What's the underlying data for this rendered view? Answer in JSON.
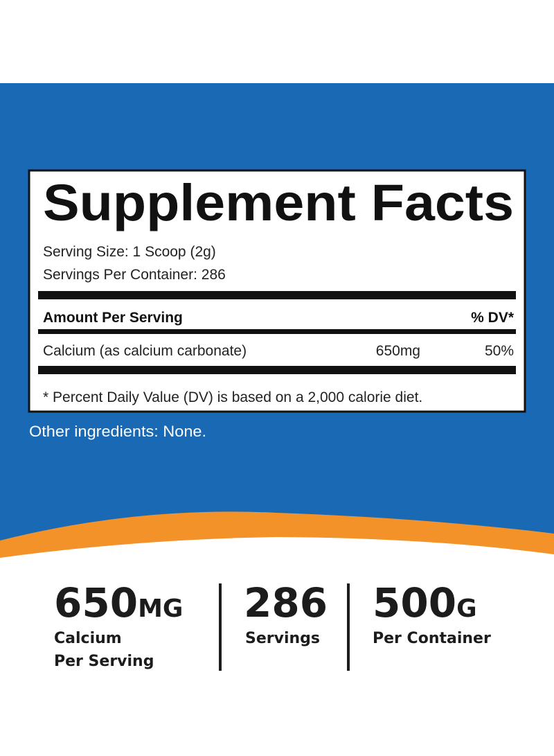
{
  "facts": {
    "title": "Supplement Facts",
    "serving_size": "Serving Size: 1 Scoop (2g)",
    "servings_per_container": "Servings Per Container: 286",
    "amount_header": "Amount Per Serving",
    "dv_header": "% DV*",
    "rows": [
      {
        "name": "Calcium (as calcium carbonate)",
        "amount": "650mg",
        "dv": "50%"
      }
    ],
    "footnote": "* Percent Daily Value (DV) is based on a 2,000 calorie diet."
  },
  "other_ingredients": "Other ingredients: None.",
  "stats": [
    {
      "number": "650",
      "unit": "MG",
      "label": [
        "Calcium",
        "Per Serving"
      ]
    },
    {
      "number": "286",
      "label": [
        "Servings"
      ]
    },
    {
      "number": "500",
      "unit": "G",
      "label": [
        "Per Container"
      ]
    }
  ]
}
